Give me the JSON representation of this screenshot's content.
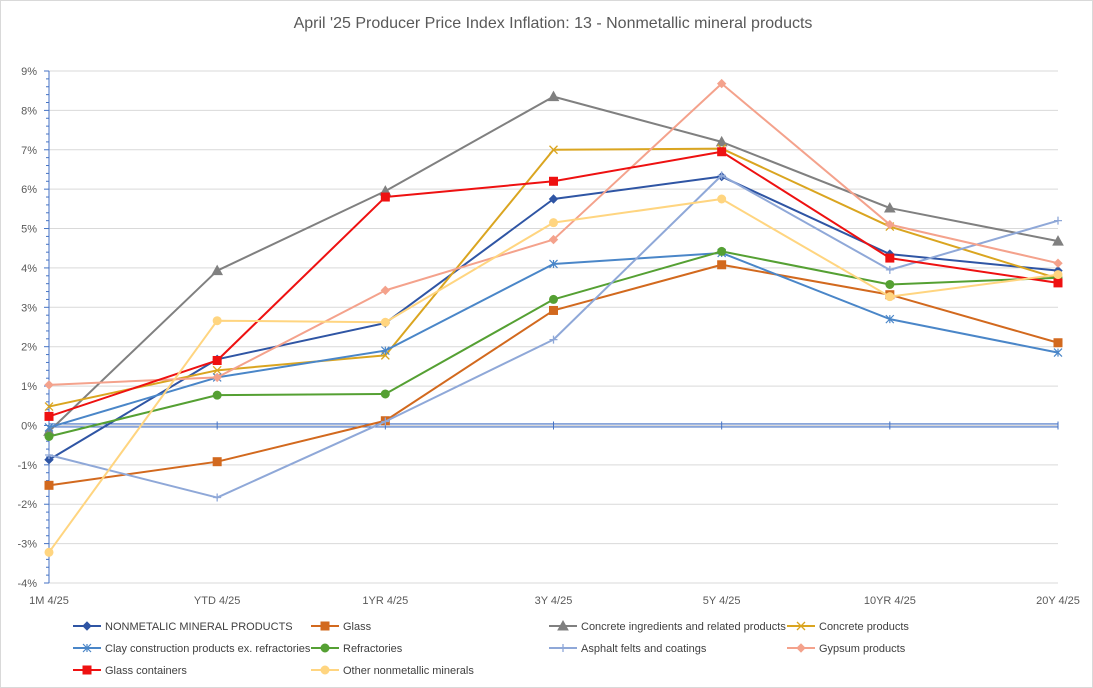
{
  "chart_data": {
    "type": "line",
    "title": "April '25 Producer Price Index Inflation: 13 - Nonmetallic mineral products",
    "xlabel": "",
    "ylabel": "",
    "categories": [
      "1M 4/25",
      "YTD  4/25",
      "1YR 4/25",
      "3Y 4/25",
      "5Y 4/25",
      "10YR  4/25",
      "20Y 4/25"
    ],
    "ylim": [
      -4,
      9
    ],
    "yticks": [
      -4,
      -3,
      -2,
      -1,
      0,
      1,
      2,
      3,
      4,
      5,
      6,
      7,
      8,
      9
    ],
    "ytick_labels": [
      "-4%",
      "-3%",
      "-2%",
      "-1%",
      "0%",
      "1%",
      "2%",
      "3%",
      "4%",
      "5%",
      "6%",
      "7%",
      "8%",
      "9%"
    ],
    "unit": "%",
    "grid": true,
    "legend_position": "bottom",
    "zero_line_color": "#4472C4",
    "series": [
      {
        "name": "NONMETALIC MINERAL PRODUCTS",
        "color": "#2F55A4",
        "marker": "diamond",
        "values": [
          -0.87,
          1.68,
          2.6,
          5.75,
          6.32,
          4.35,
          3.93
        ]
      },
      {
        "name": "Glass",
        "color": "#D2691E",
        "marker": "square",
        "values": [
          -1.52,
          -0.92,
          0.12,
          2.92,
          4.08,
          3.32,
          2.1
        ]
      },
      {
        "name": "Concrete ingredients and related products",
        "color": "#808080",
        "marker": "triangle",
        "values": [
          -0.15,
          3.93,
          5.95,
          8.35,
          7.2,
          5.52,
          4.68
        ]
      },
      {
        "name": "Concrete products",
        "color": "#DAA520",
        "marker": "x",
        "values": [
          0.48,
          1.4,
          1.78,
          7.0,
          7.03,
          5.05,
          3.73
        ]
      },
      {
        "name": "Clay construction products ex. refractories",
        "color": "#4A86C8",
        "marker": "asterisk",
        "values": [
          -0.05,
          1.22,
          1.9,
          4.1,
          4.38,
          2.7,
          1.85
        ]
      },
      {
        "name": "Refractories",
        "color": "#55A033",
        "marker": "circle",
        "values": [
          -0.28,
          0.77,
          0.8,
          3.2,
          4.42,
          3.58,
          3.75
        ]
      },
      {
        "name": "Asphalt felts and coatings",
        "color": "#8FA8D8",
        "marker": "plus",
        "values": [
          -0.75,
          -1.83,
          0.1,
          2.18,
          6.35,
          3.95,
          5.2
        ]
      },
      {
        "name": "Gypsum products",
        "color": "#F4A28C",
        "marker": "diamond",
        "values": [
          1.03,
          1.22,
          3.43,
          4.72,
          8.68,
          5.1,
          4.12
        ]
      },
      {
        "name": "Glass containers",
        "color": "#EE1111",
        "marker": "square",
        "values": [
          0.23,
          1.65,
          5.8,
          6.2,
          6.95,
          4.25,
          3.62
        ]
      },
      {
        "name": "Other nonmetallic minerals",
        "color": "#FFD580",
        "marker": "circle",
        "values": [
          -3.22,
          2.66,
          2.62,
          5.15,
          5.75,
          3.27,
          3.83
        ]
      }
    ]
  }
}
